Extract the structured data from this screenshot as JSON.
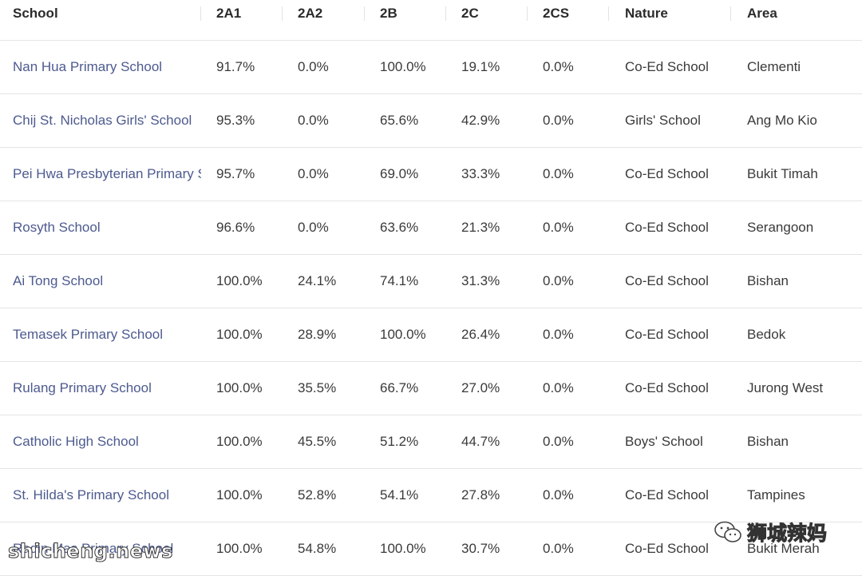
{
  "table": {
    "columns": [
      "School",
      "2A1",
      "2A2",
      "2B",
      "2C",
      "2CS",
      "Nature",
      "Area"
    ],
    "rows": [
      {
        "school": "Nan Hua Primary School",
        "a1": "91.7%",
        "a2": "0.0%",
        "b": "100.0%",
        "c": "19.1%",
        "cs": "0.0%",
        "nature": "Co-Ed School",
        "area": "Clementi"
      },
      {
        "school": "Chij St. Nicholas Girls' School",
        "a1": "95.3%",
        "a2": "0.0%",
        "b": "65.6%",
        "c": "42.9%",
        "cs": "0.0%",
        "nature": "Girls' School",
        "area": "Ang Mo Kio"
      },
      {
        "school": "Pei Hwa Presbyterian Primary School",
        "a1": "95.7%",
        "a2": "0.0%",
        "b": "69.0%",
        "c": "33.3%",
        "cs": "0.0%",
        "nature": "Co-Ed School",
        "area": "Bukit Timah"
      },
      {
        "school": "Rosyth School",
        "a1": "96.6%",
        "a2": "0.0%",
        "b": "63.6%",
        "c": "21.3%",
        "cs": "0.0%",
        "nature": "Co-Ed School",
        "area": "Serangoon"
      },
      {
        "school": "Ai Tong School",
        "a1": "100.0%",
        "a2": "24.1%",
        "b": "74.1%",
        "c": "31.3%",
        "cs": "0.0%",
        "nature": "Co-Ed School",
        "area": "Bishan"
      },
      {
        "school": "Temasek Primary School",
        "a1": "100.0%",
        "a2": "28.9%",
        "b": "100.0%",
        "c": "26.4%",
        "cs": "0.0%",
        "nature": "Co-Ed School",
        "area": "Bedok"
      },
      {
        "school": "Rulang Primary School",
        "a1": "100.0%",
        "a2": "35.5%",
        "b": "66.7%",
        "c": "27.0%",
        "cs": "0.0%",
        "nature": "Co-Ed School",
        "area": "Jurong West"
      },
      {
        "school": "Catholic High School",
        "a1": "100.0%",
        "a2": "45.5%",
        "b": "51.2%",
        "c": "44.7%",
        "cs": "0.0%",
        "nature": "Boys' School",
        "area": "Bishan"
      },
      {
        "school": "St. Hilda's Primary School",
        "a1": "100.0%",
        "a2": "52.8%",
        "b": "54.1%",
        "c": "27.8%",
        "cs": "0.0%",
        "nature": "Co-Ed School",
        "area": "Tampines"
      },
      {
        "school": "Radin Mas Primary School",
        "a1": "100.0%",
        "a2": "54.8%",
        "b": "100.0%",
        "c": "30.7%",
        "cs": "0.0%",
        "nature": "Co-Ed School",
        "area": "Bukit Merah"
      }
    ]
  },
  "watermarks": {
    "left": "shicheng.news",
    "right": "狮城辣妈",
    "right_icon": "wechat-icon"
  },
  "colors": {
    "school_link": "#4d5a8f",
    "text": "#3a3a3a",
    "header_text": "#2b2b2b",
    "divider": "#e4e4e4"
  }
}
